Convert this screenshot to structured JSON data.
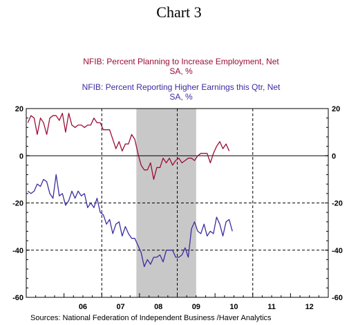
{
  "chart_data": {
    "type": "line",
    "title": "Chart 3",
    "series": [
      {
        "name": "NFIB: Percent Planning to Increase Employment, Net",
        "subtitle": "SA, %",
        "color": "#9b0c36",
        "start": [
          2005,
          1
        ],
        "values": [
          14,
          17,
          16,
          9,
          16,
          14,
          9,
          16,
          17,
          17,
          15,
          18,
          10,
          18,
          13,
          12,
          13,
          13,
          12,
          13,
          13,
          16,
          14,
          14,
          11,
          11,
          11,
          7,
          3,
          6,
          2,
          5,
          5,
          9,
          7,
          1,
          -4,
          -6,
          -6,
          -3,
          -10,
          -5,
          -5,
          -1,
          -3,
          -1,
          -4,
          -2,
          -1,
          -3,
          -2,
          -1,
          -1,
          -2,
          0,
          1,
          1,
          1,
          -3,
          1,
          4,
          6,
          3,
          5,
          2
        ]
      },
      {
        "name": "NFIB: Percent Reporting Higher Earnings this Qtr, Net",
        "subtitle": "SA, %",
        "color": "#3a2ca0",
        "start": [
          2005,
          1
        ],
        "values": [
          -15,
          -16,
          -15,
          -12,
          -13,
          -10,
          -11,
          -16,
          -18,
          -8,
          -17,
          -16,
          -21,
          -19,
          -15,
          -18,
          -15,
          -17,
          -16,
          -22,
          -20,
          -22,
          -18,
          -24,
          -25,
          -29,
          -27,
          -33,
          -29,
          -28,
          -34,
          -30,
          -33,
          -35,
          -35,
          -38,
          -41,
          -47,
          -44,
          -46,
          -43,
          -43,
          -42,
          -45,
          -40,
          -40,
          -40,
          -43,
          -43,
          -42,
          -39,
          -43,
          -31,
          -28,
          -32,
          -33,
          -29,
          -34,
          -32,
          -33,
          -26,
          -29,
          -34,
          -28,
          -27,
          -32
        ]
      }
    ],
    "x_tick_labels": [
      "06",
      "07",
      "08",
      "09",
      "10",
      "11",
      "12"
    ],
    "xlim": [
      "2005-01",
      "2012-12"
    ],
    "ylim": [
      -60,
      20
    ],
    "y_ticks": [
      -60,
      -40,
      -20,
      0,
      20
    ],
    "recession_shading": [
      "2007-12",
      "2009-06"
    ],
    "source": "Sources:  National Federation of Independent Business /Haver Analytics"
  }
}
